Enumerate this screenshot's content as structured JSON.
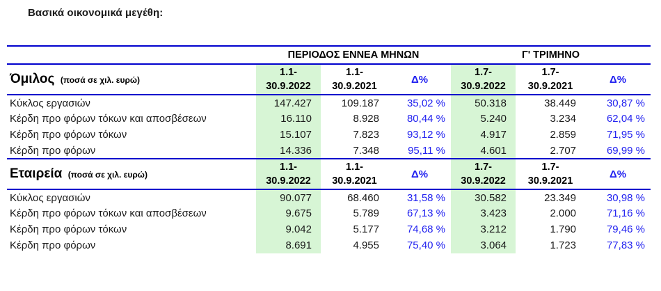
{
  "page_title": "Βασικά οικονομικά μεγέθη:",
  "colors": {
    "rule_blue": "#0101cd",
    "delta_blue": "#2222f0",
    "highlight_green": "#d7f5d5"
  },
  "table": {
    "period_groups": {
      "nine_months": "ΠΕΡΙΟΔΟΣ ΕΝΝΕΑ ΜΗΝΩΝ",
      "q3": "Γ' ΤΡΙΜΗΝΟ"
    },
    "sections": [
      {
        "name": "Όμιλος",
        "unit": "(ποσά σε χιλ. ευρώ)",
        "columns": [
          {
            "line1": "1.1-",
            "line2": "30.9.2022"
          },
          {
            "line1": "1.1-",
            "line2": "30.9.2021"
          },
          {
            "label": "Δ%"
          },
          {
            "line1": "1.7-",
            "line2": "30.9.2022"
          },
          {
            "line1": "1.7-",
            "line2": "30.9.2021"
          },
          {
            "label": "Δ%"
          }
        ],
        "rows": [
          {
            "label": "Κύκλος εργασιών",
            "values": [
              "147.427",
              "109.187",
              "35,02 %",
              "50.318",
              "38.449",
              "30,87 %"
            ]
          },
          {
            "label": "Κέρδη προ φόρων τόκων και αποσβέσεων",
            "values": [
              "16.110",
              "8.928",
              "80,44 %",
              "5.240",
              "3.234",
              "62,04 %"
            ]
          },
          {
            "label": "Κέρδη προ φόρων τόκων",
            "values": [
              "15.107",
              "7.823",
              "93,12 %",
              "4.917",
              "2.859",
              "71,95 %"
            ]
          },
          {
            "label": "Κέρδη προ φόρων",
            "values": [
              "14.336",
              "7.348",
              "95,11 %",
              "4.601",
              "2.707",
              "69,99 %"
            ]
          }
        ]
      },
      {
        "name": "Εταιρεία",
        "unit": "(ποσά σε χιλ. ευρώ)",
        "columns": [
          {
            "line1": "1.1-",
            "line2": "30.9.2022"
          },
          {
            "line1": "1.1-",
            "line2": "30.9.2021"
          },
          {
            "label": "Δ%"
          },
          {
            "line1": "1.7-",
            "line2": "30.9.2022"
          },
          {
            "line1": "1.7-",
            "line2": "30.9.2021"
          },
          {
            "label": "Δ%"
          }
        ],
        "rows": [
          {
            "label": "Κύκλος εργασιών",
            "values": [
              "90.077",
              "68.460",
              "31,58 %",
              "30.582",
              "23.349",
              "30,98 %"
            ]
          },
          {
            "label": "Κέρδη προ φόρων τόκων και αποσβέσεων",
            "values": [
              "9.675",
              "5.789",
              "67,13 %",
              "3.423",
              "2.000",
              "71,16 %"
            ]
          },
          {
            "label": "Κέρδη προ φόρων τόκων",
            "values": [
              "9.042",
              "5.177",
              "74,68 %",
              "3.212",
              "1.790",
              "79,46 %"
            ]
          },
          {
            "label": "Κέρδη προ φόρων",
            "values": [
              "8.691",
              "4.955",
              "75,40 %",
              "3.064",
              "1.723",
              "77,83 %"
            ]
          }
        ]
      }
    ]
  }
}
